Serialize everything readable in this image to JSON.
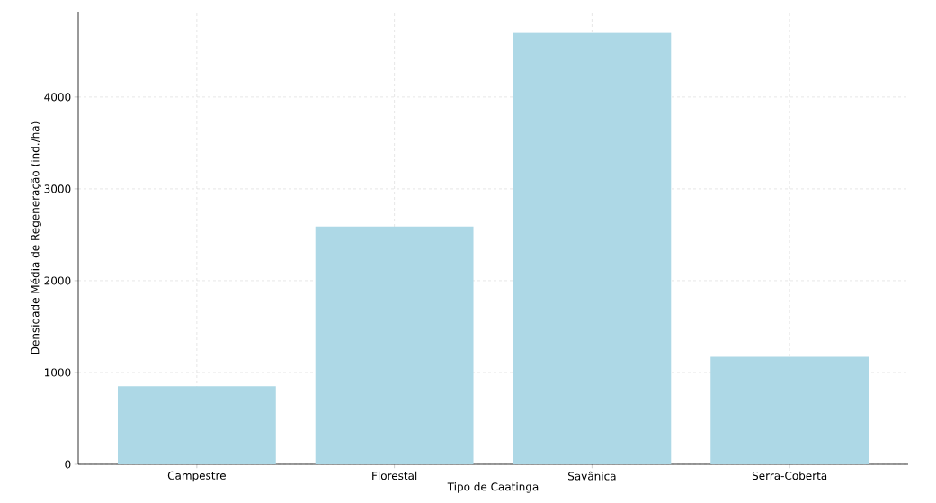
{
  "chart_data": {
    "type": "bar",
    "xlabel": "Tipo de Caatinga",
    "ylabel": "Densidade Média de Regeneração (ind./ha)",
    "categories": [
      "Campestre",
      "Florestal",
      "Savânica",
      "Serra-Coberta"
    ],
    "values": [
      850,
      2590,
      4700,
      1170
    ],
    "color": "#add8e6",
    "ylim": [
      0,
      4930
    ],
    "yticks": [
      0,
      1000,
      2000,
      3000,
      4000
    ],
    "grid": true
  }
}
